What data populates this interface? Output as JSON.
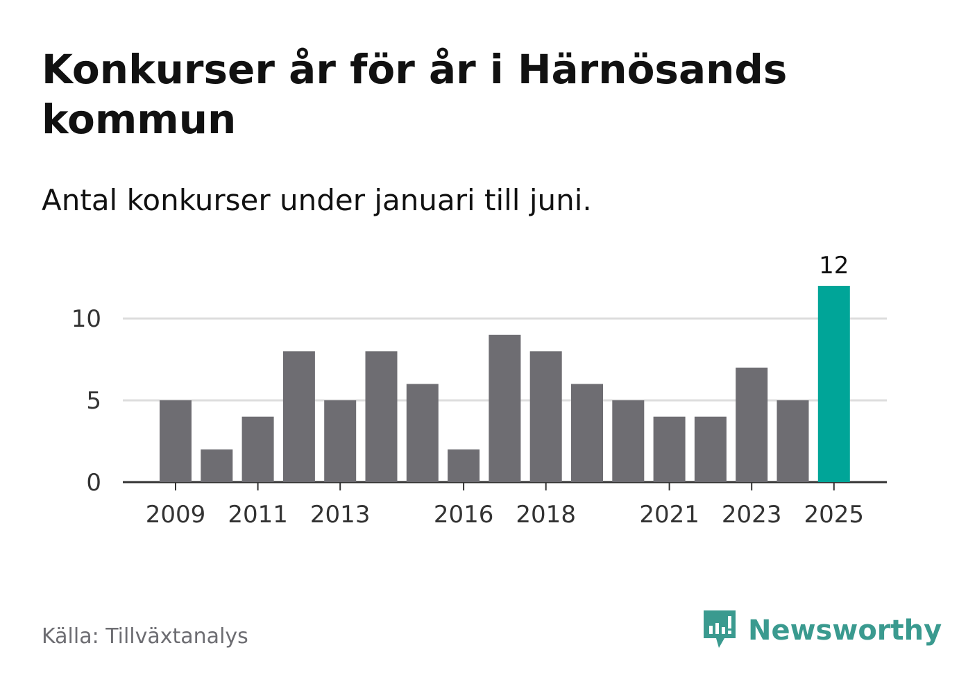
{
  "title": "Konkurser år för år i Härnösands kommun",
  "subtitle": "Antal konkurser under januari till juni.",
  "source": "Källa: Tillväxtanalys",
  "brand": {
    "name": "Newsworthy",
    "icon": "newsworthy-logo-icon"
  },
  "colors": {
    "bar": "#6e6d72",
    "highlight": "#00a598",
    "grid": "#dddddd",
    "axis": "#333333",
    "brand": "#3a9a8f"
  },
  "chart_data": {
    "type": "bar",
    "categories": [
      "2009",
      "2010",
      "2011",
      "2012",
      "2013",
      "2014",
      "2015",
      "2016",
      "2017",
      "2018",
      "2019",
      "2020",
      "2021",
      "2022",
      "2023",
      "2024",
      "2025"
    ],
    "values": [
      5,
      2,
      4,
      8,
      5,
      8,
      6,
      2,
      9,
      8,
      6,
      5,
      4,
      4,
      7,
      5,
      12
    ],
    "highlight_index": 16,
    "highlight_label": "12",
    "x_tick_labels": [
      "2009",
      "2011",
      "2013",
      "2016",
      "2018",
      "2021",
      "2023",
      "2025"
    ],
    "y_ticks": [
      0,
      5,
      10
    ],
    "ylim": [
      0,
      12
    ],
    "grid": true,
    "xlabel": "",
    "ylabel": "",
    "title": "Konkurser år för år i Härnösands kommun"
  }
}
